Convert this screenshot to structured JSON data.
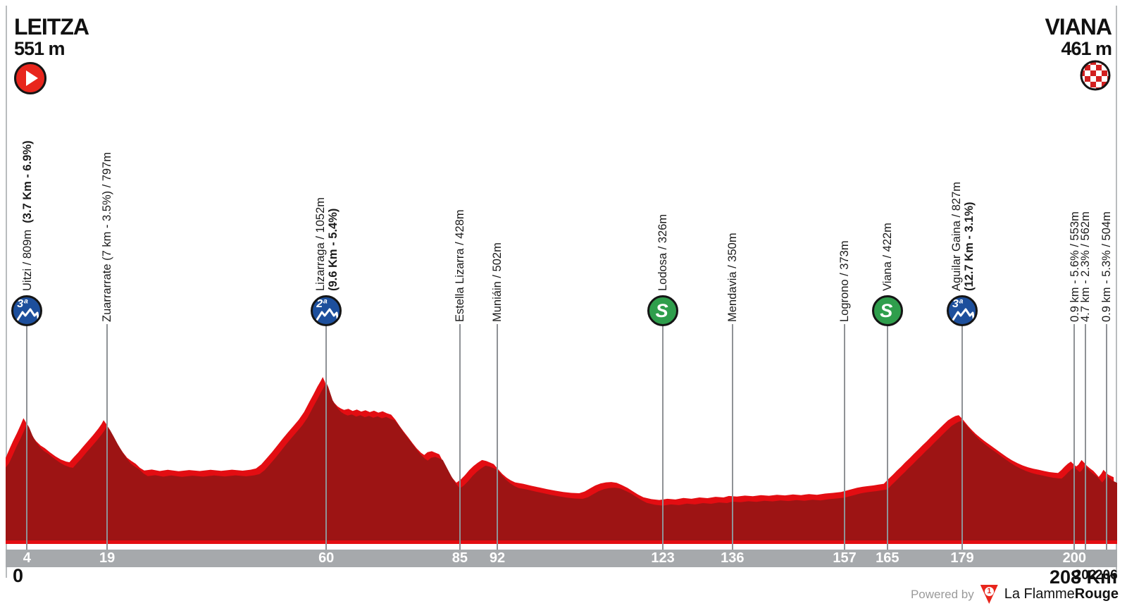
{
  "header": {
    "start": {
      "name": "LEITZA",
      "elevation": "551 m"
    },
    "finish": {
      "name": "VIANA",
      "elevation": "461 m"
    }
  },
  "axis": {
    "zero_label": "0",
    "end_label": "208 Km",
    "unit": "Km"
  },
  "footer": {
    "powered_by": "Powered by",
    "logo_digit": "1",
    "brand_regular": "La Flamme",
    "brand_bold": "Rouge"
  },
  "colors": {
    "bright_red": "#e30d12",
    "dark_red": "#9d1414",
    "axis_gray": "#a6a9ac",
    "line_gray": "#8f9296",
    "climb_blue": "#1d4f9c",
    "sprint_green": "#2f9e4c",
    "start_red": "#e8251c",
    "checker_red": "#d22020"
  },
  "waypoints": [
    {
      "km": 4,
      "label": "Uitzi / 809m ",
      "bold": "(3.7 Km - 6.9%)",
      "bold_same_line": true,
      "icon": "climb",
      "icon_text": "3ª",
      "tick": "4",
      "tick_pos": "bar"
    },
    {
      "km": 19,
      "label": "Zuarrarrate (7 km - 3.5%) / 797m",
      "tick": "19",
      "tick_pos": "bar"
    },
    {
      "km": 60,
      "label": "Lizarraga / 1052m",
      "bold": "(9.6 Km - 5.4%)",
      "bold_same_line": false,
      "icon": "climb",
      "icon_text": "2ª",
      "tick": "60",
      "tick_pos": "bar"
    },
    {
      "km": 85,
      "label": "Estella Lizarra / 428m",
      "tick": "85",
      "tick_pos": "bar"
    },
    {
      "km": 92,
      "label": "Muniáin / 502m",
      "tick": "92",
      "tick_pos": "bar"
    },
    {
      "km": 123,
      "label": "Lodosa / 326m",
      "icon": "sprint",
      "icon_text": "S",
      "tick": "123",
      "tick_pos": "bar"
    },
    {
      "km": 136,
      "label": "Mendavia / 350m",
      "tick": "136",
      "tick_pos": "bar"
    },
    {
      "km": 157,
      "label": "Logrono / 373m",
      "tick": "157",
      "tick_pos": "bar"
    },
    {
      "km": 165,
      "label": "Viana / 422m",
      "icon": "sprint",
      "icon_text": "S",
      "tick": "165",
      "tick_pos": "bar"
    },
    {
      "km": 179,
      "label": "Aguilar Gaina / 827m",
      "bold": "(12.7 Km - 3.1%)",
      "bold_same_line": false,
      "icon": "climb",
      "icon_text": "3ª",
      "tick": "179",
      "tick_pos": "bar"
    },
    {
      "km": 200,
      "label": "0.9 km - 5.6% / 553m",
      "tick": "200",
      "tick_pos": "bar"
    },
    {
      "km": 202,
      "label": "4.7 km - 2.3% / 562m",
      "tick": "202",
      "tick_pos": "below"
    },
    {
      "km": 206,
      "label": "0.9 km - 5.3% / 504m",
      "tick": "206",
      "tick_pos": "below"
    }
  ],
  "chart_data": {
    "type": "area",
    "x_unit": "km",
    "y_unit": "m",
    "x_range": [
      0,
      208
    ],
    "start": {
      "name": "LEITZA",
      "elevation_m": 551
    },
    "finish": {
      "name": "VIANA",
      "elevation_m": 461
    },
    "waypoints": [
      {
        "name": "Uitzi",
        "km": 4,
        "elevation_m": 809,
        "type": "climb-cat3",
        "detail": "3.7 Km - 6.9%"
      },
      {
        "name": "Zuarrarrate",
        "km": 19,
        "elevation_m": 797,
        "type": "summit",
        "detail": "7 km - 3.5%"
      },
      {
        "name": "Lizarraga",
        "km": 60,
        "elevation_m": 1052,
        "type": "climb-cat2",
        "detail": "9.6 Km - 5.4%"
      },
      {
        "name": "Estella Lizarra",
        "km": 85,
        "elevation_m": 428,
        "type": "town"
      },
      {
        "name": "Muniáin",
        "km": 92,
        "elevation_m": 502,
        "type": "town"
      },
      {
        "name": "Lodosa",
        "km": 123,
        "elevation_m": 326,
        "type": "sprint"
      },
      {
        "name": "Mendavia",
        "km": 136,
        "elevation_m": 350,
        "type": "town"
      },
      {
        "name": "Logrono",
        "km": 157,
        "elevation_m": 373,
        "type": "town"
      },
      {
        "name": "Viana",
        "km": 165,
        "elevation_m": 422,
        "type": "sprint"
      },
      {
        "name": "Aguilar Gaina",
        "km": 179,
        "elevation_m": 827,
        "type": "climb-cat3",
        "detail": "12.7 Km - 3.1%"
      },
      {
        "name": "climb 553m",
        "km": 200,
        "elevation_m": 553,
        "type": "summit",
        "detail": "0.9 km - 5.6%"
      },
      {
        "name": "climb 562m",
        "km": 202,
        "elevation_m": 562,
        "type": "summit",
        "detail": "4.7 km - 2.3%"
      },
      {
        "name": "climb 504m",
        "km": 206,
        "elevation_m": 504,
        "type": "summit",
        "detail": "0.9 km - 5.3%"
      }
    ],
    "profile": [
      [
        0,
        551
      ],
      [
        0.6,
        575
      ],
      [
        1.2,
        615
      ],
      [
        2,
        672
      ],
      [
        2.8,
        722
      ],
      [
        3.5,
        772
      ],
      [
        4,
        809
      ],
      [
        4.4,
        788
      ],
      [
        5,
        742
      ],
      [
        5.6,
        705
      ],
      [
        6.4,
        672
      ],
      [
        7.2,
        648
      ],
      [
        8,
        632
      ],
      [
        9,
        606
      ],
      [
        10,
        583
      ],
      [
        11,
        565
      ],
      [
        12,
        553
      ],
      [
        12.6,
        549
      ],
      [
        13.4,
        578
      ],
      [
        14.2,
        605
      ],
      [
        15,
        635
      ],
      [
        16,
        672
      ],
      [
        17,
        708
      ],
      [
        18,
        748
      ],
      [
        18.6,
        775
      ],
      [
        19,
        797
      ],
      [
        19.5,
        775
      ],
      [
        20.2,
        735
      ],
      [
        21,
        688
      ],
      [
        21.8,
        645
      ],
      [
        22.6,
        607
      ],
      [
        23.4,
        575
      ],
      [
        24.2,
        556
      ],
      [
        25,
        540
      ],
      [
        25.8,
        516
      ],
      [
        26.6,
        500
      ],
      [
        28,
        506
      ],
      [
        29.5,
        497
      ],
      [
        31,
        504
      ],
      [
        33,
        496
      ],
      [
        35,
        503
      ],
      [
        37,
        497
      ],
      [
        39,
        504
      ],
      [
        41,
        498
      ],
      [
        43,
        505
      ],
      [
        45,
        499
      ],
      [
        46.5,
        505
      ],
      [
        47.5,
        512
      ],
      [
        48.5,
        536
      ],
      [
        49.5,
        572
      ],
      [
        50.5,
        608
      ],
      [
        51.5,
        648
      ],
      [
        52.5,
        688
      ],
      [
        53.5,
        726
      ],
      [
        54.5,
        762
      ],
      [
        55.5,
        800
      ],
      [
        56.5,
        845
      ],
      [
        57.5,
        905
      ],
      [
        58.3,
        952
      ],
      [
        59,
        995
      ],
      [
        59.6,
        1028
      ],
      [
        60,
        1052
      ],
      [
        60.4,
        1025
      ],
      [
        60.8,
        985
      ],
      [
        61.2,
        948
      ],
      [
        61.7,
        920
      ],
      [
        62.2,
        898
      ],
      [
        62.8,
        878
      ],
      [
        63.4,
        866
      ],
      [
        64,
        858
      ],
      [
        64.8,
        864
      ],
      [
        65.6,
        852
      ],
      [
        66.4,
        860
      ],
      [
        67.2,
        848
      ],
      [
        68,
        856
      ],
      [
        68.8,
        845
      ],
      [
        69.6,
        853
      ],
      [
        70.4,
        842
      ],
      [
        71.2,
        850
      ],
      [
        72,
        838
      ],
      [
        72.8,
        830
      ],
      [
        73.6,
        800
      ],
      [
        74.4,
        762
      ],
      [
        75.2,
        728
      ],
      [
        76,
        696
      ],
      [
        76.8,
        662
      ],
      [
        77.6,
        630
      ],
      [
        78.4,
        605
      ],
      [
        79,
        592
      ],
      [
        79.6,
        608
      ],
      [
        80.4,
        614
      ],
      [
        81,
        606
      ],
      [
        81.8,
        596
      ],
      [
        82.6,
        548
      ],
      [
        83.4,
        500
      ],
      [
        84.2,
        458
      ],
      [
        85,
        428
      ],
      [
        85.8,
        446
      ],
      [
        86.6,
        472
      ],
      [
        87.4,
        502
      ],
      [
        88.2,
        526
      ],
      [
        89,
        546
      ],
      [
        89.8,
        562
      ],
      [
        90.6,
        556
      ],
      [
        91.4,
        546
      ],
      [
        92,
        538
      ],
      [
        92.8,
        508
      ],
      [
        93.6,
        480
      ],
      [
        94.4,
        458
      ],
      [
        95.2,
        442
      ],
      [
        96,
        430
      ],
      [
        97.5,
        422
      ],
      [
        99,
        410
      ],
      [
        100.5,
        400
      ],
      [
        102,
        390
      ],
      [
        103.5,
        381
      ],
      [
        105,
        373
      ],
      [
        106.5,
        368
      ],
      [
        108,
        366
      ],
      [
        109,
        376
      ],
      [
        110,
        394
      ],
      [
        111,
        412
      ],
      [
        112,
        424
      ],
      [
        113,
        430
      ],
      [
        114,
        432
      ],
      [
        115,
        427
      ],
      [
        116,
        414
      ],
      [
        117,
        398
      ],
      [
        118,
        378
      ],
      [
        119,
        358
      ],
      [
        120,
        342
      ],
      [
        121.5,
        331
      ],
      [
        123,
        326
      ],
      [
        124.5,
        333
      ],
      [
        126,
        329
      ],
      [
        127.5,
        338
      ],
      [
        129,
        333
      ],
      [
        130.5,
        341
      ],
      [
        132,
        337
      ],
      [
        133.5,
        345
      ],
      [
        135,
        341
      ],
      [
        136,
        350
      ],
      [
        137.5,
        346
      ],
      [
        139,
        352
      ],
      [
        140.5,
        348
      ],
      [
        142,
        355
      ],
      [
        143.5,
        351
      ],
      [
        145,
        357
      ],
      [
        146.5,
        353
      ],
      [
        148,
        359
      ],
      [
        149.5,
        355
      ],
      [
        151,
        361
      ],
      [
        152.5,
        357
      ],
      [
        154,
        364
      ],
      [
        155.5,
        368
      ],
      [
        157,
        373
      ],
      [
        158,
        382
      ],
      [
        159,
        390
      ],
      [
        160,
        398
      ],
      [
        161,
        404
      ],
      [
        162,
        408
      ],
      [
        163,
        412
      ],
      [
        164,
        417
      ],
      [
        165,
        422
      ],
      [
        165.8,
        448
      ],
      [
        166.6,
        472
      ],
      [
        167.4,
        498
      ],
      [
        168.2,
        522
      ],
      [
        169,
        548
      ],
      [
        169.8,
        572
      ],
      [
        170.6,
        598
      ],
      [
        171.4,
        622
      ],
      [
        172.2,
        648
      ],
      [
        173,
        672
      ],
      [
        173.8,
        698
      ],
      [
        174.6,
        722
      ],
      [
        175.4,
        748
      ],
      [
        176.2,
        772
      ],
      [
        177,
        796
      ],
      [
        177.8,
        812
      ],
      [
        178.4,
        822
      ],
      [
        179,
        827
      ],
      [
        179.6,
        808
      ],
      [
        180.2,
        785
      ],
      [
        180.8,
        762
      ],
      [
        181.5,
        738
      ],
      [
        182.2,
        716
      ],
      [
        183,
        695
      ],
      [
        184,
        670
      ],
      [
        185,
        648
      ],
      [
        186,
        625
      ],
      [
        187,
        602
      ],
      [
        188,
        580
      ],
      [
        189,
        560
      ],
      [
        190,
        544
      ],
      [
        191,
        530
      ],
      [
        192,
        519
      ],
      [
        193,
        511
      ],
      [
        194,
        504
      ],
      [
        195,
        497
      ],
      [
        196,
        491
      ],
      [
        197,
        487
      ],
      [
        197.6,
        486
      ],
      [
        198.2,
        502
      ],
      [
        198.8,
        522
      ],
      [
        199.4,
        540
      ],
      [
        200,
        553
      ],
      [
        200.5,
        538
      ],
      [
        201,
        524
      ],
      [
        201.4,
        534
      ],
      [
        202,
        562
      ],
      [
        202.5,
        546
      ],
      [
        203,
        528
      ],
      [
        203.6,
        512
      ],
      [
        204.2,
        498
      ],
      [
        204.8,
        478
      ],
      [
        205.2,
        462
      ],
      [
        205.7,
        482
      ],
      [
        206.1,
        504
      ],
      [
        206.6,
        488
      ],
      [
        207,
        476
      ],
      [
        207.5,
        468
      ],
      [
        208,
        461
      ]
    ]
  }
}
